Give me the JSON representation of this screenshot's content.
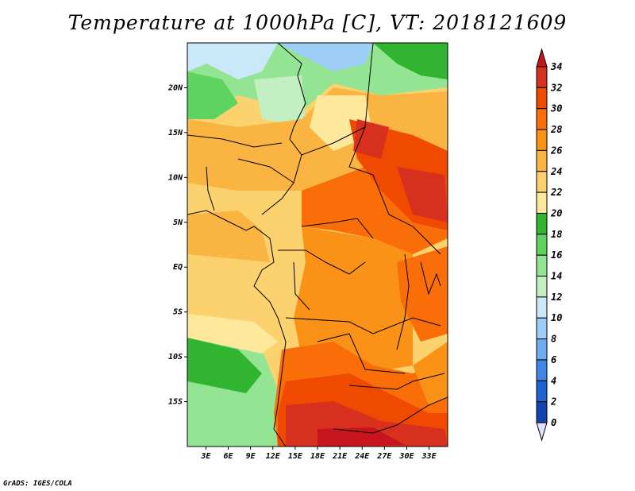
{
  "title": "Temperature at 1000hPa [C], VT: 2018121609",
  "credit": "GrADS: IGES/COLA",
  "map": {
    "lat_labels": [
      "20N",
      "15N",
      "10N",
      "5N",
      "EQ",
      "5S",
      "10S",
      "15S"
    ],
    "lon_labels": [
      "3E",
      "6E",
      "9E",
      "12E",
      "15E",
      "18E",
      "21E",
      "24E",
      "27E",
      "30E",
      "33E"
    ],
    "lat_values": [
      20,
      15,
      10,
      5,
      0,
      -5,
      -10,
      -15
    ],
    "lon_values": [
      3,
      6,
      9,
      12,
      15,
      18,
      21,
      24,
      27,
      30,
      33
    ],
    "extent": {
      "lon_min": 0.5,
      "lon_max": 35.5,
      "lat_min": -20,
      "lat_max": 25
    }
  },
  "colorbar": {
    "levels": [
      "34",
      "32",
      "30",
      "28",
      "26",
      "24",
      "22",
      "20",
      "18",
      "16",
      "14",
      "12",
      "10",
      "8",
      "6",
      "4",
      "2",
      "0"
    ],
    "colors": [
      "#d7301f",
      "#f04a00",
      "#fa6e0a",
      "#fb9218",
      "#fab441",
      "#fbd26e",
      "#fde89c",
      "#31b531",
      "#5fd35f",
      "#93e493",
      "#c2f0c2",
      "#c9e9fb",
      "#9ecdf7",
      "#6fabf0",
      "#3f86e8",
      "#1e64d2",
      "#1343ae",
      "#0a1f78"
    ],
    "top_color": "#c8141c",
    "bottom_color": "#e0e0ff"
  }
}
